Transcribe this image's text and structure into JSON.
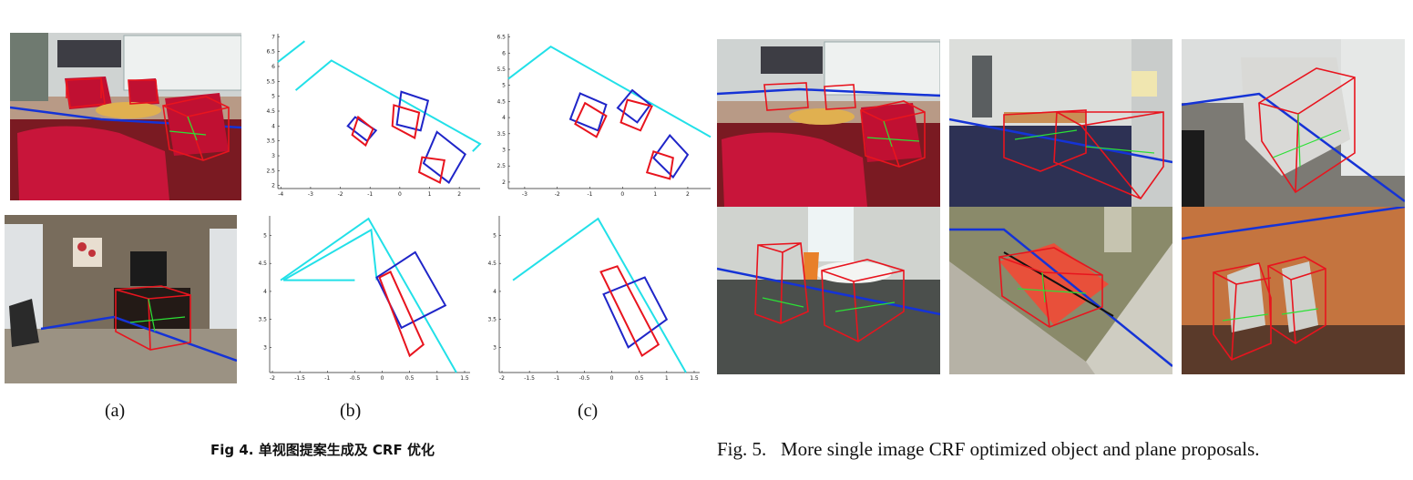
{
  "figure4": {
    "subfigure_labels": [
      "(a)",
      "(b)",
      "(c)"
    ],
    "caption": "Fig 4. 单视图提案生成及 CRF 优化"
  },
  "figure5": {
    "caption": "Fig. 5.   More single image CRF optimized object and plane proposals."
  },
  "colors": {
    "object_box_red": "#e8141e",
    "proposal_blue": "#1f25c8",
    "plane_cyan": "#22e0e8",
    "ground_line_blue": "#1533d6",
    "axis_green": "#2ce036"
  },
  "chart_data": [
    {
      "type": "line",
      "panel": "(b) top",
      "x_ticks": [
        "-4",
        "-3",
        "-2",
        "-1",
        "0",
        "1",
        "2"
      ],
      "y_ticks": [
        "2",
        "2.5",
        "3",
        "3.5",
        "4",
        "4.5",
        "5",
        "5.5",
        "6",
        "6.5",
        "7"
      ],
      "xlim": [
        -4.1,
        2.7
      ],
      "ylim": [
        1.9,
        7.1
      ],
      "series": [
        {
          "color": "#22e0e8",
          "x": [
            -4.1,
            -3.2
          ],
          "y": [
            6.15,
            6.85
          ]
        },
        {
          "color": "#22e0e8",
          "x": [
            -3.5,
            -2.3,
            2.7,
            2.45
          ],
          "y": [
            5.2,
            6.2,
            3.4,
            3.15
          ]
        }
      ],
      "boxes": [
        {
          "color": "#1f25c8",
          "x": [
            -1.5,
            -0.8,
            -1.1,
            -1.75
          ],
          "y": [
            4.3,
            3.85,
            3.5,
            4.0
          ]
        },
        {
          "color": "#e8141e",
          "x": [
            -1.4,
            -0.9,
            -1.15,
            -1.6
          ],
          "y": [
            4.3,
            3.9,
            3.35,
            3.7
          ]
        },
        {
          "color": "#1f25c8",
          "x": [
            0.05,
            0.95,
            0.7,
            -0.1
          ],
          "y": [
            5.15,
            4.85,
            3.85,
            4.05
          ]
        },
        {
          "color": "#e8141e",
          "x": [
            -0.2,
            0.65,
            0.5,
            -0.25
          ],
          "y": [
            4.7,
            4.45,
            3.6,
            4.0
          ]
        },
        {
          "color": "#1f25c8",
          "x": [
            1.25,
            2.2,
            1.65,
            0.8
          ],
          "y": [
            3.8,
            3.05,
            2.1,
            2.75
          ]
        },
        {
          "color": "#e8141e",
          "x": [
            0.75,
            1.5,
            1.35,
            0.65
          ],
          "y": [
            2.95,
            2.85,
            2.1,
            2.45
          ]
        }
      ]
    },
    {
      "type": "line",
      "panel": "(c) top",
      "x_ticks": [
        "-3",
        "-2",
        "-1",
        "0",
        "1",
        "2"
      ],
      "y_ticks": [
        "2",
        "2.5",
        "3",
        "3.5",
        "4",
        "4.5",
        "5",
        "5.5",
        "6",
        "6.5"
      ],
      "xlim": [
        -3.5,
        2.7
      ],
      "ylim": [
        1.8,
        6.6
      ],
      "series": [
        {
          "color": "#22e0e8",
          "x": [
            -3.5,
            -2.2,
            2.7
          ],
          "y": [
            5.2,
            6.2,
            3.4
          ]
        }
      ],
      "boxes": [
        {
          "color": "#1f25c8",
          "x": [
            -1.3,
            -0.5,
            -0.75,
            -1.6
          ],
          "y": [
            4.75,
            4.4,
            3.6,
            3.95
          ]
        },
        {
          "color": "#e8141e",
          "x": [
            -1.15,
            -0.5,
            -0.8,
            -1.45
          ],
          "y": [
            4.45,
            4.05,
            3.4,
            3.8
          ]
        },
        {
          "color": "#1f25c8",
          "x": [
            0.3,
            0.85,
            0.45,
            -0.15
          ],
          "y": [
            4.85,
            4.4,
            3.85,
            4.3
          ]
        },
        {
          "color": "#e8141e",
          "x": [
            0.15,
            0.9,
            0.55,
            -0.05
          ],
          "y": [
            4.55,
            4.35,
            3.6,
            3.85
          ]
        },
        {
          "color": "#1f25c8",
          "x": [
            1.45,
            2.0,
            1.55,
            0.95
          ],
          "y": [
            3.45,
            2.85,
            2.15,
            2.75
          ]
        },
        {
          "color": "#e8141e",
          "x": [
            0.95,
            1.55,
            1.45,
            0.75
          ],
          "y": [
            2.95,
            2.75,
            2.1,
            2.3
          ]
        }
      ]
    },
    {
      "type": "line",
      "panel": "(b) bottom",
      "x_ticks": [
        "-2",
        "-1.5",
        "-1",
        "-0.5",
        "0",
        "0.5",
        "1",
        "1.5"
      ],
      "y_ticks": [
        "3",
        "3.5",
        "4",
        "4.5",
        "5"
      ],
      "xlim": [
        -2.05,
        1.6
      ],
      "ylim": [
        2.55,
        5.35
      ],
      "series": [
        {
          "color": "#22e0e8",
          "x": [
            -1.85,
            -0.25,
            1.35
          ],
          "y": [
            4.2,
            5.3,
            2.55
          ]
        },
        {
          "color": "#22e0e8",
          "x": [
            -1.8,
            -0.2,
            -0.1
          ],
          "y": [
            4.2,
            5.1,
            4.2
          ]
        },
        {
          "color": "#22e0e8",
          "x": [
            -1.8,
            -0.5
          ],
          "y": [
            4.2,
            4.2
          ]
        }
      ],
      "boxes": [
        {
          "color": "#1f25c8",
          "x": [
            -0.1,
            0.6,
            1.15,
            0.35
          ],
          "y": [
            4.25,
            4.7,
            3.75,
            3.35
          ]
        },
        {
          "color": "#e8141e",
          "x": [
            -0.05,
            0.15,
            0.75,
            0.5
          ],
          "y": [
            4.25,
            4.35,
            3.05,
            2.85
          ]
        }
      ]
    },
    {
      "type": "line",
      "panel": "(c) bottom",
      "x_ticks": [
        "-2",
        "-1.5",
        "-1",
        "-0.5",
        "0",
        "0.5",
        "1",
        "1.5"
      ],
      "y_ticks": [
        "3",
        "3.5",
        "4",
        "4.5",
        "5"
      ],
      "xlim": [
        -2.05,
        1.6
      ],
      "ylim": [
        2.55,
        5.35
      ],
      "series": [
        {
          "color": "#22e0e8",
          "x": [
            -1.8,
            -0.25,
            1.35
          ],
          "y": [
            4.2,
            5.3,
            2.55
          ]
        }
      ],
      "boxes": [
        {
          "color": "#1f25c8",
          "x": [
            -0.15,
            0.6,
            1.0,
            0.3
          ],
          "y": [
            3.95,
            4.25,
            3.5,
            3.0
          ]
        },
        {
          "color": "#e8141e",
          "x": [
            -0.2,
            0.1,
            0.85,
            0.55
          ],
          "y": [
            4.35,
            4.45,
            3.05,
            2.85
          ]
        }
      ]
    }
  ]
}
